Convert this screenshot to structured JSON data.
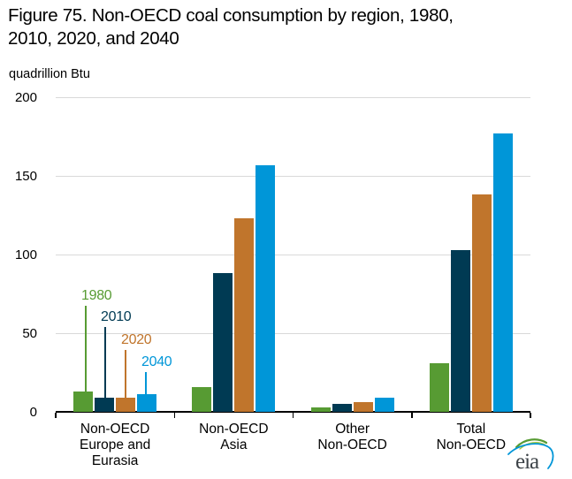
{
  "display": {
    "title_line1": "Figure 75. Non-OECD coal consumption by region, 1980,",
    "title_line2": "2010, 2020, and 2040",
    "units_label": "quadrillion Btu"
  },
  "chart_data": {
    "type": "bar",
    "title": "Figure 75. Non-OECD coal consumption by region, 1980, 2010, 2020, and 2040",
    "ylabel": "quadrillion Btu",
    "xlabel": "",
    "ylim": [
      0,
      200
    ],
    "yticks": [
      0,
      50,
      100,
      150,
      200
    ],
    "grid": "horizontal gridlines at 50-unit intervals",
    "legend_position": "year labels annotated above first bar group with colored leader lines",
    "categories": [
      "Non-OECD\nEurope and\nEurasia",
      "Non-OECD\nAsia",
      "Other\nNon-OECD",
      "Total\nNon-OECD"
    ],
    "series": [
      {
        "name": "1980",
        "color": "#579b33",
        "values": [
          13,
          16,
          3,
          31
        ]
      },
      {
        "name": "2010",
        "color": "#003a53",
        "values": [
          9,
          88,
          5,
          103
        ]
      },
      {
        "name": "2020",
        "color": "#c0752c",
        "values": [
          9,
          123,
          6,
          138
        ]
      },
      {
        "name": "2040",
        "color": "#0096d8",
        "values": [
          11,
          157,
          9,
          177
        ]
      }
    ]
  },
  "logo": {
    "text": "eia",
    "text_color": "#3d4348",
    "swoosh_green": "#579b33",
    "swoosh_blue": "#0096d8"
  }
}
